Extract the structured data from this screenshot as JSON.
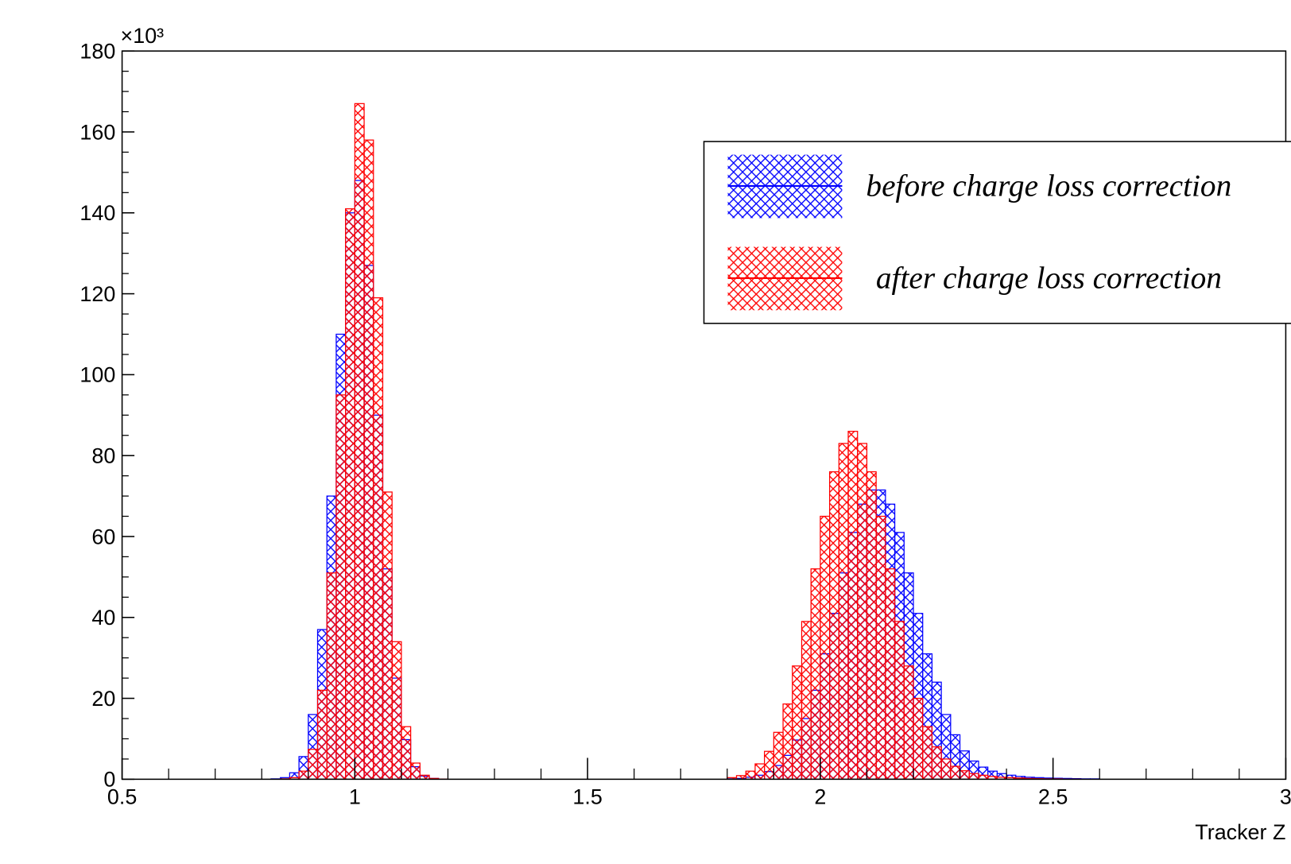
{
  "chart_data": {
    "type": "histogram",
    "x_label": "Tracker Z",
    "y_multiplier_label": "×10³",
    "xlim": [
      0.5,
      3
    ],
    "ylim": [
      0,
      180
    ],
    "xticks": [
      0.5,
      1,
      1.5,
      2,
      2.5,
      3
    ],
    "yticks": [
      0,
      20,
      40,
      60,
      80,
      100,
      120,
      140,
      160,
      180
    ],
    "bins": [
      0.8,
      0.82,
      0.84,
      0.86,
      0.88,
      0.9,
      0.92,
      0.94,
      0.96,
      0.98,
      1,
      1.02,
      1.04,
      1.06,
      1.08,
      1.1,
      1.12,
      1.14,
      1.16,
      1.18,
      1.2,
      1.22,
      1.24,
      1.26,
      1.28,
      1.3,
      1.32,
      1.34,
      1.36,
      1.38,
      1.4,
      1.42,
      1.44,
      1.46,
      1.48,
      1.5,
      1.52,
      1.54,
      1.56,
      1.58,
      1.6,
      1.62,
      1.64,
      1.66,
      1.68,
      1.7,
      1.72,
      1.74,
      1.76,
      1.78,
      1.8,
      1.82,
      1.84,
      1.86,
      1.88,
      1.9,
      1.92,
      1.94,
      1.96,
      1.98,
      2,
      2.02,
      2.04,
      2.06,
      2.08,
      2.1,
      2.12,
      2.14,
      2.16,
      2.18,
      2.2,
      2.22,
      2.24,
      2.26,
      2.28,
      2.3,
      2.32,
      2.34,
      2.36,
      2.38,
      2.4,
      2.42,
      2.44,
      2.46,
      2.48,
      2.5,
      2.52,
      2.54,
      2.56,
      2.58,
      2.6
    ],
    "legend_position": "upper right",
    "series": [
      {
        "name": "before charge loss correction",
        "color": "#0000ff",
        "values": [
          0,
          0.1,
          0.4,
          1.6,
          5.6,
          16,
          37,
          70,
          110,
          140,
          148,
          127,
          90,
          52,
          25,
          9.8,
          3.1,
          0.8,
          0.2,
          0.05,
          0,
          0,
          0,
          0,
          0,
          0,
          0,
          0,
          0,
          0,
          0,
          0,
          0,
          0,
          0,
          0,
          0,
          0,
          0,
          0,
          0,
          0,
          0,
          0,
          0,
          0,
          0,
          0,
          0,
          0,
          0.1,
          0.2,
          0.5,
          1,
          1.9,
          3.4,
          5.9,
          9.7,
          15,
          22,
          31,
          41,
          51,
          61,
          68,
          71.5,
          71.5,
          68,
          61,
          51,
          41,
          31,
          24,
          16,
          11,
          7,
          4.5,
          3,
          2,
          1.4,
          1,
          0.7,
          0.5,
          0.4,
          0.3,
          0.25,
          0.2,
          0.15,
          0.1,
          0.1
        ]
      },
      {
        "name": "after charge loss correction",
        "color": "#ff0000",
        "values": [
          0,
          0,
          0.1,
          0.4,
          2,
          7.4,
          22,
          51,
          95,
          141,
          167,
          158,
          119,
          71,
          34,
          13,
          4,
          1,
          0.2,
          0.05,
          0,
          0,
          0,
          0,
          0,
          0,
          0,
          0,
          0,
          0,
          0,
          0,
          0,
          0,
          0,
          0,
          0,
          0,
          0,
          0,
          0,
          0,
          0,
          0,
          0,
          0,
          0,
          0,
          0,
          0,
          0.4,
          0.9,
          2,
          3.8,
          6.9,
          11.6,
          18.6,
          28,
          39,
          52,
          65,
          76,
          83,
          86,
          83,
          76,
          65,
          52,
          39,
          28,
          20,
          13,
          8,
          5,
          3.2,
          2.1,
          1.4,
          1,
          0.7,
          0.5,
          0.4,
          0.3,
          0.2,
          0.15,
          0.1,
          0.1,
          0.05,
          0.05,
          0,
          0
        ]
      }
    ]
  }
}
